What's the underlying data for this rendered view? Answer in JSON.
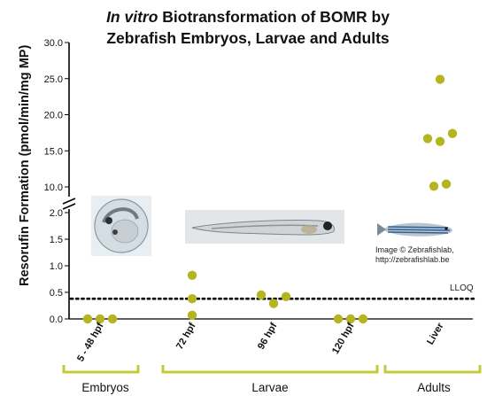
{
  "title": {
    "italic": "In vitro",
    "rest": " Biotransformation of BOMR by",
    "line2": "Zebrafish Embryos, Larvae and Adults"
  },
  "axes": {
    "ylabel": "Resorufin Formation (pmol/min/mg MP)"
  },
  "chart_data": {
    "type": "scatter",
    "categories": [
      "5 - 48 hpf",
      "72 hpf",
      "96 hpf",
      "120 hpf",
      "Liver"
    ],
    "groups": [
      {
        "label": "Embryos",
        "categories": [
          "5 - 48 hpf"
        ]
      },
      {
        "label": "Larvae",
        "categories": [
          "72 hpf",
          "96 hpf",
          "120 hpf"
        ]
      },
      {
        "label": "Adults",
        "categories": [
          "Liver"
        ]
      }
    ],
    "ylabel": "Resorufin Formation (pmol/min/mg MP)",
    "y_break": {
      "lower": [
        0,
        2.0
      ],
      "upper": [
        10.0,
        30.0
      ]
    },
    "lower_ticks": [
      "0.0",
      "0.5",
      "1.0",
      "1.5",
      "2.0"
    ],
    "upper_ticks": [
      "10.0",
      "15.0",
      "20.0",
      "25.0",
      "30.0"
    ],
    "points": [
      {
        "category": "5 - 48 hpf",
        "y": 0.0
      },
      {
        "category": "5 - 48 hpf",
        "y": 0.0
      },
      {
        "category": "5 - 48 hpf",
        "y": 0.0
      },
      {
        "category": "72 hpf",
        "y": 0.82
      },
      {
        "category": "72 hpf",
        "y": 0.38
      },
      {
        "category": "72 hpf",
        "y": 0.07
      },
      {
        "category": "96 hpf",
        "y": 0.45
      },
      {
        "category": "96 hpf",
        "y": 0.29
      },
      {
        "category": "96 hpf",
        "y": 0.42
      },
      {
        "category": "120 hpf",
        "y": 0.0
      },
      {
        "category": "120 hpf",
        "y": 0.0
      },
      {
        "category": "120 hpf",
        "y": 0.0
      },
      {
        "category": "Liver",
        "y": 16.7
      },
      {
        "category": "Liver",
        "y": 10.1
      },
      {
        "category": "Liver",
        "y": 24.9
      },
      {
        "category": "Liver",
        "y": 16.3
      },
      {
        "category": "Liver",
        "y": 10.4
      },
      {
        "category": "Liver",
        "y": 17.4
      }
    ],
    "reference_line": {
      "label": "LLOQ",
      "y": 0.38,
      "style": "dotted"
    },
    "marker_color": "#b5b521",
    "bracket_color": "#c8c83a",
    "grid": false,
    "legend": "none"
  },
  "image_credit": {
    "line1": "Image © Zebrafishlab,",
    "line2": "http://zebrafishlab.be"
  }
}
